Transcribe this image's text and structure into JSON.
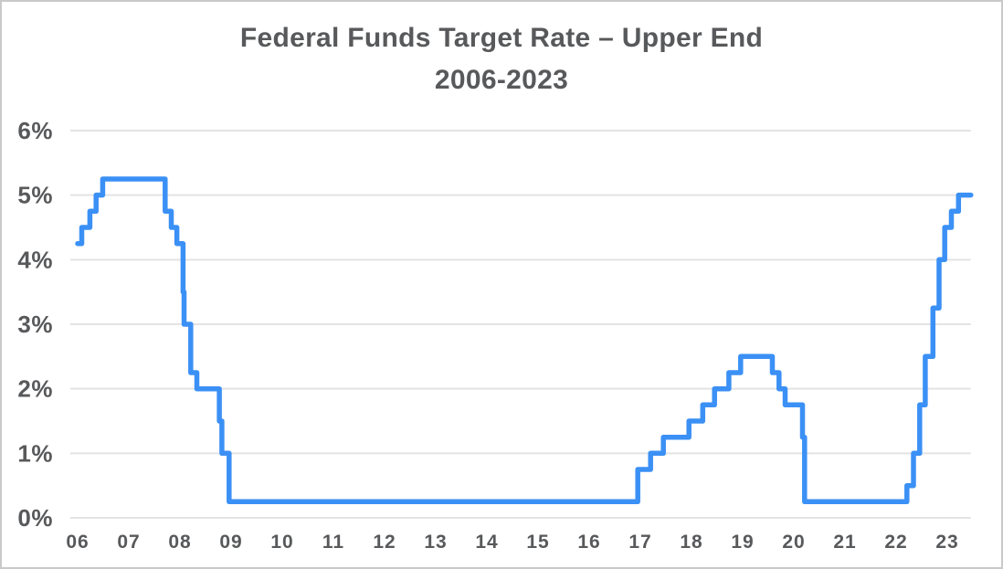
{
  "header": {
    "title": "Federal Funds Target Rate – Upper End",
    "subtitle": "2006-2023"
  },
  "chart_data": {
    "type": "line",
    "line_style": "step-after",
    "title": "Federal Funds Target Rate – Upper End",
    "subtitle": "2006-2023",
    "xlabel": "",
    "ylabel": "",
    "unit": "%",
    "grid": "horizontal",
    "legend": "none",
    "ylim": [
      0,
      6
    ],
    "xlim": [
      2006,
      2023.46
    ],
    "y_ticks": [
      {
        "label": "0%",
        "value": 0
      },
      {
        "label": "1%",
        "value": 1
      },
      {
        "label": "2%",
        "value": 2
      },
      {
        "label": "3%",
        "value": 3
      },
      {
        "label": "4%",
        "value": 4
      },
      {
        "label": "5%",
        "value": 5
      },
      {
        "label": "6%",
        "value": 6
      }
    ],
    "x_ticks": [
      {
        "label": "06",
        "year": 2006
      },
      {
        "label": "07",
        "year": 2007
      },
      {
        "label": "08",
        "year": 2008
      },
      {
        "label": "09",
        "year": 2009
      },
      {
        "label": "10",
        "year": 2010
      },
      {
        "label": "11",
        "year": 2011
      },
      {
        "label": "12",
        "year": 2012
      },
      {
        "label": "13",
        "year": 2013
      },
      {
        "label": "14",
        "year": 2014
      },
      {
        "label": "15",
        "year": 2015
      },
      {
        "label": "16",
        "year": 2016
      },
      {
        "label": "17",
        "year": 2017
      },
      {
        "label": "18",
        "year": 2018
      },
      {
        "label": "19",
        "year": 2019
      },
      {
        "label": "20",
        "year": 2020
      },
      {
        "label": "21",
        "year": 2021
      },
      {
        "label": "22",
        "year": 2022
      },
      {
        "label": "23",
        "year": 2023
      }
    ],
    "series": [
      {
        "name": "Federal Funds Target Rate – Upper End",
        "color": "#3b90f5",
        "points": [
          [
            2006.0,
            4.25
          ],
          [
            2006.08,
            4.5
          ],
          [
            2006.24,
            4.75
          ],
          [
            2006.36,
            5.0
          ],
          [
            2006.49,
            5.25
          ],
          [
            2007.71,
            4.75
          ],
          [
            2007.83,
            4.5
          ],
          [
            2007.94,
            4.25
          ],
          [
            2008.06,
            3.5
          ],
          [
            2008.08,
            3.0
          ],
          [
            2008.21,
            2.25
          ],
          [
            2008.33,
            2.0
          ],
          [
            2008.77,
            1.5
          ],
          [
            2008.82,
            1.0
          ],
          [
            2008.96,
            0.25
          ],
          [
            2016.95,
            0.75
          ],
          [
            2017.2,
            1.0
          ],
          [
            2017.45,
            1.25
          ],
          [
            2017.95,
            1.5
          ],
          [
            2018.22,
            1.75
          ],
          [
            2018.45,
            2.0
          ],
          [
            2018.73,
            2.25
          ],
          [
            2018.96,
            2.5
          ],
          [
            2019.58,
            2.25
          ],
          [
            2019.71,
            2.0
          ],
          [
            2019.83,
            1.75
          ],
          [
            2020.17,
            1.25
          ],
          [
            2020.21,
            0.25
          ],
          [
            2022.21,
            0.5
          ],
          [
            2022.34,
            1.0
          ],
          [
            2022.46,
            1.75
          ],
          [
            2022.57,
            2.5
          ],
          [
            2022.72,
            3.25
          ],
          [
            2022.84,
            4.0
          ],
          [
            2022.95,
            4.5
          ],
          [
            2023.08,
            4.75
          ],
          [
            2023.22,
            5.0
          ]
        ]
      }
    ],
    "colors": {
      "line": "#3b90f5",
      "grid": "#e3e3e3",
      "text": "#58595b",
      "background": "#ffffff",
      "border": "#c9c9c9"
    }
  }
}
